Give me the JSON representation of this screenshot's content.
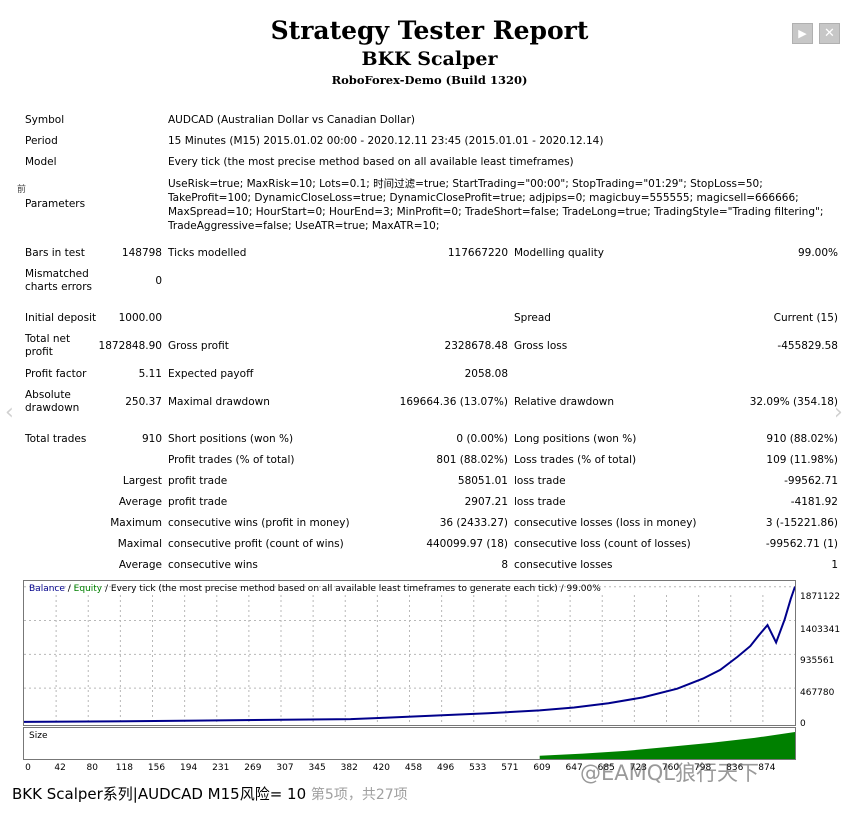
{
  "header": {
    "title": "Strategy Tester Report",
    "ea_name": "BKK Scalper",
    "server": "RoboForex-Demo (Build 1320)",
    "play_icon": "play-icon",
    "close_icon": "close-icon"
  },
  "info": {
    "symbol_label": "Symbol",
    "symbol_value": "AUDCAD (Australian Dollar vs Canadian Dollar)",
    "period_label": "Period",
    "period_value": "15 Minutes (M15) 2015.01.02 00:00 - 2020.12.11 23:45 (2015.01.01 - 2020.12.14)",
    "model_label": "Model",
    "model_value": "Every tick (the most precise method based on all available least timeframes)",
    "parameters_label": "Parameters",
    "parameters_mark": "前",
    "parameters_value": "UseRisk=true; MaxRisk=10; Lots=0.1; 时间过滤=true; StartTrading=\"00:00\"; StopTrading=\"01:29\"; StopLoss=50; TakeProfit=100; DynamicCloseLoss=true; DynamicCloseProfit=true; adjpips=0; magicbuy=555555; magicsell=666666; MaxSpread=10; HourStart=0; HourEnd=3; MinProfit=0; TradeShort=false; TradeLong=true; TradingStyle=\"Trading filtering\"; TradeAggressive=false; UseATR=true; MaxATR=10;"
  },
  "stats": {
    "bars_label": "Bars in test",
    "bars_value": "148798",
    "ticks_label": "Ticks modelled",
    "ticks_value": "117667220",
    "quality_label": "Modelling quality",
    "quality_value": "99.00%",
    "mismatched_label": "Mismatched charts errors",
    "mismatched_value": "0",
    "deposit_label": "Initial deposit",
    "deposit_value": "1000.00",
    "spread_label": "Spread",
    "spread_value": "Current (15)",
    "netprofit_label": "Total net profit",
    "netprofit_value": "1872848.90",
    "grossprofit_label": "Gross profit",
    "grossprofit_value": "2328678.48",
    "grossloss_label": "Gross loss",
    "grossloss_value": "-455829.58",
    "pf_label": "Profit factor",
    "pf_value": "5.11",
    "payoff_label": "Expected payoff",
    "payoff_value": "2058.08",
    "absdd_label": "Absolute drawdown",
    "absdd_value": "250.37",
    "maxdd_label": "Maximal drawdown",
    "maxdd_value": "169664.36 (13.07%)",
    "reldd_label": "Relative drawdown",
    "reldd_value": "32.09% (354.18)",
    "trades_label": "Total trades",
    "trades_value": "910",
    "short_label": "Short positions (won %)",
    "short_value": "0 (0.00%)",
    "long_label": "Long positions (won %)",
    "long_value": "910 (88.02%)",
    "ptrades_label": "Profit trades (% of total)",
    "ptrades_value": "801 (88.02%)",
    "ltrades_label": "Loss trades (% of total)",
    "ltrades_value": "109 (11.98%)",
    "largest_label": "Largest",
    "largest_profit_label": "profit trade",
    "largest_profit_value": "58051.01",
    "largest_loss_label": "loss trade",
    "largest_loss_value": "-99562.71",
    "average_label": "Average",
    "average_profit_label": "profit trade",
    "average_profit_value": "2907.21",
    "average_loss_label": "loss trade",
    "average_loss_value": "-4181.92",
    "maximum_label": "Maximum",
    "max_wins_label": "consecutive wins (profit in money)",
    "max_wins_value": "36 (2433.27)",
    "max_losses_label": "consecutive losses (loss in money)",
    "max_losses_value": "3 (-15221.86)",
    "maximal_label": "Maximal",
    "maximal_profit_label": "consecutive profit (count of wins)",
    "maximal_profit_value": "440099.97 (18)",
    "maximal_loss_label": "consecutive loss (count of losses)",
    "maximal_loss_value": "-99562.71 (1)",
    "avg2_label": "Average",
    "avg_wins_label": "consecutive wins",
    "avg_wins_value": "8",
    "avg_losses_label": "consecutive losses",
    "avg_losses_value": "1"
  },
  "chart_data": {
    "type": "line",
    "legend": {
      "balance": "Balance",
      "sep1": " / ",
      "equity": "Equity",
      "rest": " / Every tick (the most precise method based on all available least timeframes to generate each tick) / 99.00%"
    },
    "colors": {
      "balance": "#00008b",
      "equity": "#008000",
      "size": "#008000",
      "grid": "#b8b8b8"
    },
    "xlim": [
      0,
      897
    ],
    "ylim": [
      0,
      1950000
    ],
    "x_ticks": [
      "0",
      "42",
      "80",
      "118",
      "156",
      "194",
      "231",
      "269",
      "307",
      "345",
      "382",
      "420",
      "458",
      "496",
      "533",
      "571",
      "609",
      "647",
      "685",
      "723",
      "760",
      "798",
      "836",
      "874"
    ],
    "y_ticks": [
      "1871122",
      "1403341",
      "935561",
      "467780",
      "0"
    ],
    "series": [
      {
        "name": "Balance",
        "x": [
          0,
          100,
          200,
          300,
          380,
          420,
          480,
          540,
          600,
          640,
          680,
          720,
          760,
          790,
          810,
          830,
          845,
          855,
          865,
          875,
          885,
          892,
          897
        ],
        "y": [
          1000,
          8000,
          20000,
          30000,
          40000,
          60000,
          90000,
          120000,
          160000,
          200000,
          260000,
          340000,
          460000,
          600000,
          720000,
          900000,
          1050000,
          1200000,
          1340000,
          1100000,
          1420000,
          1700000,
          1872848
        ]
      }
    ],
    "size_series": {
      "x": [
        600,
        650,
        700,
        750,
        800,
        850,
        897
      ],
      "y": [
        0.12,
        0.2,
        0.3,
        0.45,
        0.6,
        0.78,
        1.0
      ]
    }
  },
  "caption": {
    "text": "BKK Scalper系列|AUDCAD M15风险= 10",
    "page": "第5项，共27项",
    "watermark": "@EAMQL",
    "watermark2": "狼行天下"
  }
}
